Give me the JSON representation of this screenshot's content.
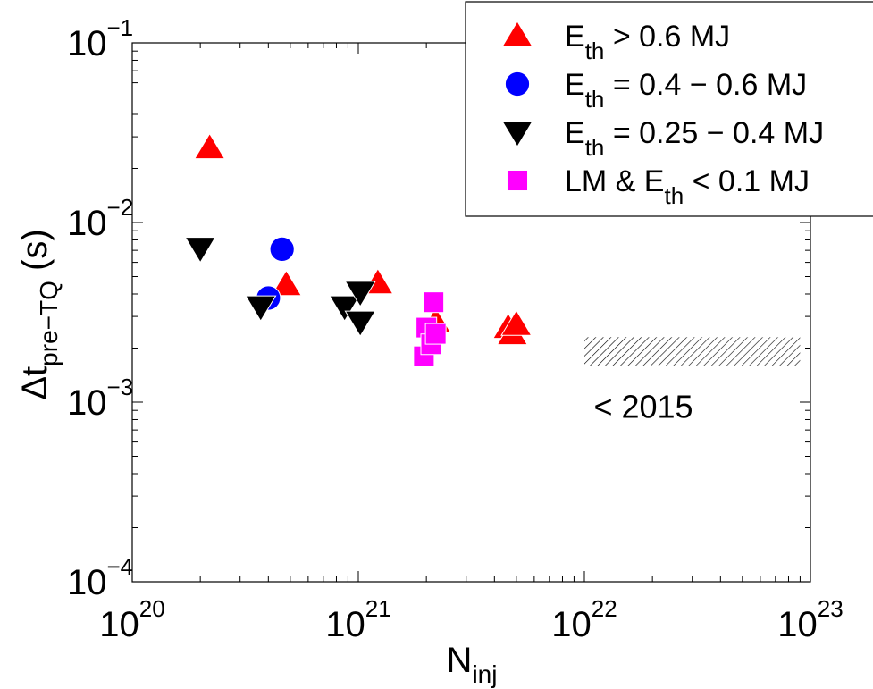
{
  "chart_data": {
    "type": "scatter",
    "title": "",
    "xscale": "log",
    "yscale": "log",
    "xlim": [
      1e+20,
      1e+23
    ],
    "ylim": [
      0.0001,
      0.1
    ],
    "grid": false,
    "legend_position": "top-right",
    "xlabel": {
      "base": "N",
      "sub": "inj"
    },
    "ylabel": {
      "base": "Δt",
      "sub": "pre−TQ",
      "suffix": "(s)"
    },
    "x_ticks": [
      {
        "value": 1e+20,
        "base": "10",
        "exp": "20"
      },
      {
        "value": 1e+21,
        "base": "10",
        "exp": "21"
      },
      {
        "value": 1e+22,
        "base": "10",
        "exp": "22"
      },
      {
        "value": 1e+23,
        "base": "10",
        "exp": "23"
      }
    ],
    "y_ticks": [
      {
        "value": 0.0001,
        "base": "10",
        "exp": "−4"
      },
      {
        "value": 0.001,
        "base": "10",
        "exp": "−3"
      },
      {
        "value": 0.01,
        "base": "10",
        "exp": "−2"
      },
      {
        "value": 0.1,
        "base": "10",
        "exp": "−1"
      }
    ],
    "series": [
      {
        "name": "E_th > 0.6 MJ",
        "legend": {
          "pre": "E",
          "sub": "th",
          "post": " > 0.6 MJ"
        },
        "marker": "triangle-up",
        "color": "#ff0000",
        "points": [
          {
            "x": 2.2e+20,
            "y": 0.026
          },
          {
            "x": 4.8e+20,
            "y": 0.0045
          },
          {
            "x": 1.22e+21,
            "y": 0.0046
          },
          {
            "x": 2.2e+21,
            "y": 0.0028
          },
          {
            "x": 4.6e+21,
            "y": 0.0026
          },
          {
            "x": 4.8e+21,
            "y": 0.0024
          },
          {
            "x": 5e+21,
            "y": 0.0027
          }
        ]
      },
      {
        "name": "E_th = 0.4 − 0.6 MJ",
        "legend": {
          "pre": "E",
          "sub": "th",
          "post": " = 0.4 − 0.6 MJ"
        },
        "marker": "circle",
        "color": "#0000ff",
        "points": [
          {
            "x": 4.6e+20,
            "y": 0.0071
          },
          {
            "x": 4e+20,
            "y": 0.0038
          }
        ]
      },
      {
        "name": "E_th = 0.25 − 0.4 MJ",
        "legend": {
          "pre": "E",
          "sub": "th",
          "post": " = 0.25 − 0.4 MJ"
        },
        "marker": "triangle-down",
        "color": "#000000",
        "points": [
          {
            "x": 2e+20,
            "y": 0.0072
          },
          {
            "x": 3.7e+20,
            "y": 0.0034
          },
          {
            "x": 8.7e+20,
            "y": 0.0034
          },
          {
            "x": 1.02e+21,
            "y": 0.0041
          },
          {
            "x": 1.02e+21,
            "y": 0.0028
          }
        ]
      },
      {
        "name": "LM & E_th < 0.1 MJ",
        "legend": {
          "pre": "LM & E",
          "sub": "th",
          "post": " < 0.1 MJ"
        },
        "marker": "square",
        "color": "#ff00ff",
        "points": [
          {
            "x": 1.95e+21,
            "y": 0.0018
          },
          {
            "x": 2e+21,
            "y": 0.0026
          },
          {
            "x": 2.1e+21,
            "y": 0.0021
          },
          {
            "x": 2.15e+21,
            "y": 0.0036
          },
          {
            "x": 2.2e+21,
            "y": 0.0024
          }
        ]
      }
    ],
    "shaded_band": {
      "x_range": [
        1e+22,
        9e+22
      ],
      "y_range": [
        0.0016,
        0.0023
      ],
      "pattern": "hatched",
      "label": "< 2015",
      "label_x": 1.1e+22,
      "label_y": 0.00082
    }
  }
}
